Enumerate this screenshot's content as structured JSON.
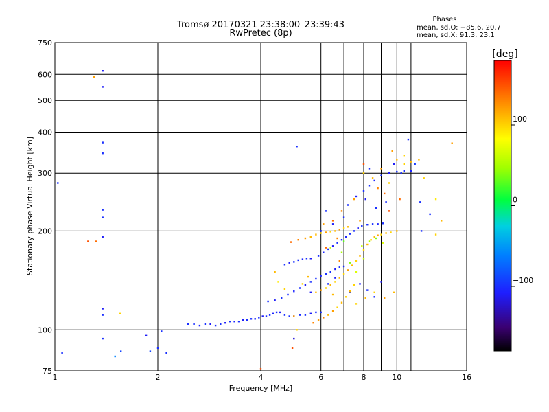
{
  "chart_data": {
    "type": "scatter",
    "title": "Tromsø 20170321 23:38:00–23:39:43",
    "subtitle": "RwPretec (8p)",
    "xlabel": "Frequency [MHz]",
    "ylabel": "Stationary phase Virtual Height [km]",
    "xscale": "log",
    "yscale": "log",
    "xlim": [
      1,
      16
    ],
    "ylim": [
      75,
      750
    ],
    "x_ticks": [
      1,
      2,
      4,
      6,
      8,
      10,
      16
    ],
    "x_tick_labels": [
      "1",
      "2",
      "4",
      "6",
      "8",
      "10",
      "16"
    ],
    "x_minor_grid": [
      7,
      9,
      11
    ],
    "y_ticks": [
      75,
      100,
      200,
      300,
      400,
      500,
      600,
      750
    ],
    "y_tick_labels": [
      "75",
      "100",
      "200",
      "300",
      "400",
      "500",
      "600",
      "750"
    ],
    "grid": true,
    "phases_box": {
      "heading": "Phases",
      "line_o": "mean, sd,O: −85.6, 20.7",
      "line_x": "mean, sd,X:  91.3, 23.1"
    },
    "colorbar": {
      "label": "[deg]",
      "range": [
        -180,
        180
      ],
      "ticks": [
        100,
        0,
        -100
      ],
      "tick_labels": [
        "100",
        "0",
        "−100"
      ]
    },
    "series": [
      {
        "points": [
          [
            1.05,
            85,
            -100
          ],
          [
            1.02,
            280,
            -100
          ],
          [
            1.38,
            615,
            -110
          ],
          [
            1.38,
            550,
            -110
          ],
          [
            1.38,
            372,
            -100
          ],
          [
            1.38,
            345,
            -100
          ],
          [
            1.38,
            232,
            -100
          ],
          [
            1.38,
            220,
            -100
          ],
          [
            1.38,
            192,
            -110
          ],
          [
            1.38,
            116,
            -110
          ],
          [
            1.38,
            111,
            -100
          ],
          [
            1.38,
            94,
            -100
          ],
          [
            1.5,
            83,
            -60
          ],
          [
            1.56,
            86,
            -90
          ],
          [
            1.85,
            96,
            -110
          ],
          [
            1.9,
            86,
            -90
          ],
          [
            2.0,
            88,
            -100
          ],
          [
            2.05,
            99,
            -100
          ],
          [
            2.12,
            85,
            -100
          ],
          [
            2.45,
            104,
            -100
          ],
          [
            2.55,
            104,
            -100
          ],
          [
            2.65,
            103,
            -105
          ],
          [
            2.75,
            104,
            -100
          ],
          [
            2.85,
            104,
            -110
          ],
          [
            2.95,
            103,
            -100
          ],
          [
            3.05,
            104,
            -100
          ],
          [
            3.15,
            105,
            -110
          ],
          [
            3.25,
            106,
            -100
          ],
          [
            3.35,
            106,
            -105
          ],
          [
            3.45,
            106,
            -100
          ],
          [
            3.55,
            107,
            -110
          ],
          [
            3.65,
            107,
            -100
          ],
          [
            3.75,
            108,
            -100
          ],
          [
            3.85,
            108,
            -105
          ],
          [
            3.95,
            109,
            -100
          ],
          [
            4.05,
            110,
            -110
          ],
          [
            4.15,
            110,
            -100
          ],
          [
            4.25,
            111,
            -100
          ],
          [
            4.35,
            112,
            -105
          ],
          [
            4.45,
            113,
            -100
          ],
          [
            4.55,
            113,
            -110
          ],
          [
            4.7,
            111,
            -100
          ],
          [
            4.85,
            110,
            -100
          ],
          [
            5.0,
            110,
            -105
          ],
          [
            5.2,
            111,
            -100
          ],
          [
            5.4,
            111,
            -100
          ],
          [
            5.6,
            112,
            -110
          ],
          [
            5.8,
            113,
            -100
          ],
          [
            6.0,
            113,
            -100
          ],
          [
            4.2,
            122,
            -100
          ],
          [
            4.4,
            123,
            -110
          ],
          [
            4.6,
            125,
            -100
          ],
          [
            4.8,
            128,
            -100
          ],
          [
            5.0,
            131,
            -105
          ],
          [
            5.2,
            134,
            -100
          ],
          [
            5.4,
            137,
            -110
          ],
          [
            5.6,
            140,
            -100
          ],
          [
            5.8,
            143,
            -100
          ],
          [
            6.0,
            146,
            -105
          ],
          [
            6.2,
            148,
            -100
          ],
          [
            6.4,
            150,
            -100
          ],
          [
            6.6,
            153,
            -110
          ],
          [
            6.8,
            155,
            -100
          ],
          [
            7.0,
            156,
            -100
          ],
          [
            4.7,
            158,
            -100
          ],
          [
            4.85,
            160,
            -110
          ],
          [
            5.0,
            161,
            -100
          ],
          [
            5.15,
            163,
            -100
          ],
          [
            5.3,
            164,
            -105
          ],
          [
            5.45,
            165,
            -100
          ],
          [
            5.6,
            165,
            -110
          ],
          [
            5.9,
            168,
            -100
          ],
          [
            6.1,
            172,
            -105
          ],
          [
            6.3,
            176,
            -100
          ],
          [
            6.5,
            180,
            -110
          ],
          [
            6.7,
            184,
            -100
          ],
          [
            6.9,
            188,
            -100
          ],
          [
            7.1,
            192,
            -105
          ],
          [
            7.3,
            196,
            -100
          ],
          [
            7.5,
            200,
            -100
          ],
          [
            7.7,
            204,
            -110
          ],
          [
            7.9,
            207,
            -100
          ],
          [
            8.2,
            209,
            -100
          ],
          [
            8.5,
            210,
            -100
          ],
          [
            8.8,
            210,
            -105
          ],
          [
            9.1,
            211,
            -100
          ],
          [
            7.2,
            240,
            -100
          ],
          [
            7.6,
            255,
            -110
          ],
          [
            8.0,
            265,
            -100
          ],
          [
            8.3,
            275,
            -100
          ],
          [
            8.6,
            285,
            -105
          ],
          [
            9.0,
            295,
            -100
          ],
          [
            9.5,
            300,
            -110
          ],
          [
            10.0,
            303,
            -100
          ],
          [
            10.5,
            305,
            -100
          ],
          [
            11.0,
            305,
            -105
          ],
          [
            10.8,
            380,
            -100
          ],
          [
            5.1,
            362,
            -100
          ],
          [
            5.0,
            94,
            -120
          ],
          [
            5.6,
            130,
            -110
          ],
          [
            6.3,
            138,
            -100
          ],
          [
            6.6,
            144,
            -110
          ],
          [
            7.3,
            130,
            -100
          ],
          [
            7.8,
            138,
            -110
          ],
          [
            8.2,
            132,
            -100
          ],
          [
            8.6,
            126,
            -100
          ],
          [
            9.0,
            140,
            -110
          ],
          [
            6.0,
            200,
            -100
          ],
          [
            6.5,
            210,
            -110
          ],
          [
            7.0,
            220,
            -100
          ],
          [
            6.2,
            230,
            -100
          ],
          [
            8.1,
            250,
            -110
          ],
          [
            8.7,
            235,
            -100
          ],
          [
            9.3,
            245,
            -100
          ],
          [
            8.3,
            310,
            -100
          ],
          [
            9.8,
            320,
            -110
          ],
          [
            12.5,
            225,
            -100
          ],
          [
            11.7,
            245,
            -100
          ],
          [
            11.8,
            200,
            -100
          ],
          [
            11.3,
            320,
            -95
          ],
          [
            10.3,
            300,
            -100
          ]
        ]
      },
      {
        "points": [
          [
            1.3,
            590,
            120
          ],
          [
            1.25,
            186,
            150
          ],
          [
            1.32,
            186,
            140
          ],
          [
            1.55,
            112,
            100
          ],
          [
            4.0,
            76,
            150
          ],
          [
            5.0,
            110,
            120
          ],
          [
            5.1,
            100,
            100
          ],
          [
            4.9,
            185,
            140
          ],
          [
            5.15,
            188,
            130
          ],
          [
            5.4,
            190,
            120
          ],
          [
            5.6,
            192,
            110
          ],
          [
            5.8,
            195,
            110
          ],
          [
            6.0,
            197,
            100
          ],
          [
            6.2,
            198,
            120
          ],
          [
            6.4,
            199,
            100
          ],
          [
            6.6,
            200,
            110
          ],
          [
            6.8,
            202,
            120
          ],
          [
            7.0,
            204,
            100
          ],
          [
            7.2,
            206,
            110
          ],
          [
            5.7,
            105,
            130
          ],
          [
            5.9,
            107,
            120
          ],
          [
            6.1,
            109,
            130
          ],
          [
            6.3,
            111,
            110
          ],
          [
            6.5,
            114,
            120
          ],
          [
            6.7,
            117,
            100
          ],
          [
            6.9,
            121,
            110
          ],
          [
            7.1,
            126,
            100
          ],
          [
            7.3,
            131,
            110
          ],
          [
            7.5,
            137,
            100
          ],
          [
            5.8,
            130,
            110
          ],
          [
            6.0,
            132,
            120
          ],
          [
            6.2,
            134,
            100
          ],
          [
            6.4,
            137,
            110
          ],
          [
            6.6,
            140,
            100
          ],
          [
            6.8,
            144,
            110
          ],
          [
            7.0,
            148,
            100
          ],
          [
            7.2,
            152,
            120
          ],
          [
            7.4,
            157,
            110
          ],
          [
            7.6,
            162,
            100
          ],
          [
            7.8,
            168,
            110
          ],
          [
            8.0,
            175,
            100
          ],
          [
            8.2,
            182,
            110
          ],
          [
            8.4,
            188,
            100
          ],
          [
            8.6,
            192,
            110
          ],
          [
            8.8,
            194,
            120
          ],
          [
            9.0,
            195,
            100
          ],
          [
            9.3,
            197,
            110
          ],
          [
            9.6,
            198,
            100
          ],
          [
            10.0,
            200,
            110
          ],
          [
            7.9,
            180,
            60
          ],
          [
            8.3,
            186,
            50
          ],
          [
            8.7,
            190,
            40
          ],
          [
            9.1,
            184,
            70
          ],
          [
            8.0,
            165,
            60
          ],
          [
            7.3,
            160,
            40
          ],
          [
            7.6,
            150,
            70
          ],
          [
            6.4,
            178,
            60
          ],
          [
            6.9,
            172,
            50
          ],
          [
            7.0,
            186,
            30
          ],
          [
            8.0,
            300,
            100
          ],
          [
            8.5,
            290,
            110
          ],
          [
            9.0,
            310,
            120
          ],
          [
            9.5,
            280,
            100
          ],
          [
            10.0,
            330,
            110
          ],
          [
            10.5,
            320,
            100
          ],
          [
            11.0,
            325,
            110
          ],
          [
            8.0,
            320,
            150
          ],
          [
            8.8,
            270,
            130
          ],
          [
            9.2,
            260,
            140
          ],
          [
            7.5,
            250,
            120
          ],
          [
            6.9,
            230,
            130
          ],
          [
            6.5,
            215,
            140
          ],
          [
            6.1,
            210,
            120
          ],
          [
            6.7,
            190,
            130
          ],
          [
            7.6,
            120,
            100
          ],
          [
            8.1,
            125,
            110
          ],
          [
            8.6,
            130,
            100
          ],
          [
            9.2,
            125,
            120
          ],
          [
            9.8,
            130,
            110
          ],
          [
            5.3,
            138,
            100
          ],
          [
            5.5,
            145,
            110
          ],
          [
            4.5,
            140,
            90
          ],
          [
            4.7,
            133,
            100
          ],
          [
            4.4,
            150,
            110
          ],
          [
            13.0,
            195,
            100
          ],
          [
            13.5,
            215,
            110
          ],
          [
            13.0,
            250,
            90
          ],
          [
            14.5,
            370,
            120
          ],
          [
            12.0,
            290,
            100
          ],
          [
            11.6,
            330,
            110
          ],
          [
            10.5,
            340,
            100
          ],
          [
            9.7,
            350,
            120
          ],
          [
            6.5,
            128,
            110
          ],
          [
            7.8,
            215,
            120
          ],
          [
            4.95,
            88,
            150
          ],
          [
            6.2,
            178,
            140
          ],
          [
            6.8,
            162,
            130
          ],
          [
            9.5,
            230,
            150
          ],
          [
            10.2,
            250,
            140
          ]
        ]
      }
    ]
  }
}
